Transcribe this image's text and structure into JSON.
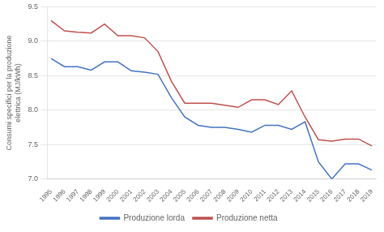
{
  "chart_data": {
    "type": "line",
    "ylabel": "Consumi specifici per la produzione\nelettrica (MJ/kWh)",
    "x": [
      1995,
      1996,
      1997,
      1998,
      1999,
      2000,
      2001,
      2002,
      2003,
      2004,
      2005,
      2006,
      2007,
      2008,
      2009,
      2010,
      2011,
      2012,
      2013,
      2014,
      2015,
      2016,
      2017,
      2018,
      2019
    ],
    "series": [
      {
        "name": "Produzione lorda",
        "color": "#4472C4",
        "values": [
          8.75,
          8.63,
          8.63,
          8.58,
          8.7,
          8.7,
          8.57,
          8.55,
          8.52,
          8.18,
          7.9,
          7.78,
          7.75,
          7.75,
          7.72,
          7.68,
          7.78,
          7.78,
          7.72,
          7.83,
          7.25,
          7.0,
          7.22,
          7.22,
          7.13
        ]
      },
      {
        "name": "Produzione netta",
        "color": "#C0504D",
        "values": [
          9.3,
          9.15,
          9.13,
          9.12,
          9.25,
          9.08,
          9.08,
          9.05,
          8.85,
          8.42,
          8.1,
          8.1,
          8.1,
          8.07,
          8.04,
          8.15,
          8.15,
          8.08,
          8.28,
          7.9,
          7.57,
          7.55,
          7.58,
          7.58,
          7.48
        ]
      }
    ],
    "xlim": [
      1994.7,
      2019.3
    ],
    "xticks": [
      1995,
      1996,
      1997,
      1998,
      1999,
      2000,
      2001,
      2002,
      2003,
      2004,
      2005,
      2006,
      2007,
      2008,
      2009,
      2010,
      2011,
      2012,
      2013,
      2014,
      2015,
      2016,
      2017,
      2018,
      2019
    ],
    "ylim": [
      7.0,
      9.5
    ],
    "yticks": [
      {
        "value": 7,
        "label": "7.0"
      },
      7.5,
      {
        "value": 8,
        "label": "8.0"
      },
      8.5,
      {
        "value": 9,
        "label": "9.0"
      },
      9.5
    ],
    "grid": "y",
    "legend": "bottom"
  }
}
